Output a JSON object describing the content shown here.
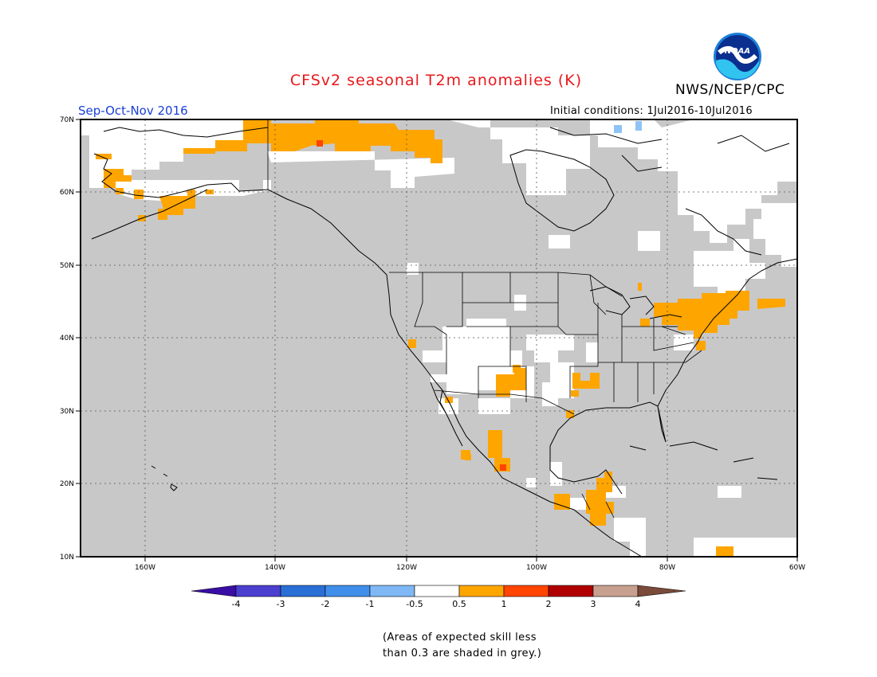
{
  "header": {
    "title": "CFSv2 seasonal T2m anomalies (K)",
    "agency": "NWS/NCEP/CPC",
    "season": "Sep-Oct-Nov 2016",
    "initial_conditions": "Initial conditions: 1Jul2016-10Jul2016",
    "logo_text": "NOAA"
  },
  "map": {
    "lon_range": [
      -170,
      -60
    ],
    "lat_range": [
      10,
      70
    ],
    "lat_labels": [
      "70N",
      "60N",
      "50N",
      "40N",
      "30N",
      "20N",
      "10N"
    ],
    "lon_labels": [
      "160W",
      "140W",
      "120W",
      "100W",
      "80W",
      "60W"
    ],
    "colors": {
      "no_skill_grey": "#c8c8c8",
      "neutral_white": "#ffffff",
      "warm_0_5_to_1": "#ffa500",
      "warm_1_to_2": "#ff4500",
      "cool_0_5_to_1": "#8fc3f5"
    }
  },
  "colorbar": {
    "labels": [
      "-4",
      "-3",
      "-2",
      "-1",
      "-0.5",
      "0.5",
      "1",
      "2",
      "3",
      "4"
    ],
    "colors": [
      "#3a0da6",
      "#4a3fcf",
      "#2a6fd6",
      "#3f8fea",
      "#7fb8f5",
      "#ffffff",
      "#ffa500",
      "#ff4500",
      "#b00000",
      "#c8a090",
      "#7a4a3a"
    ]
  },
  "note": {
    "line1": "(Areas of expected skill less",
    "line2": "than 0.3 are shaded in grey.)"
  }
}
